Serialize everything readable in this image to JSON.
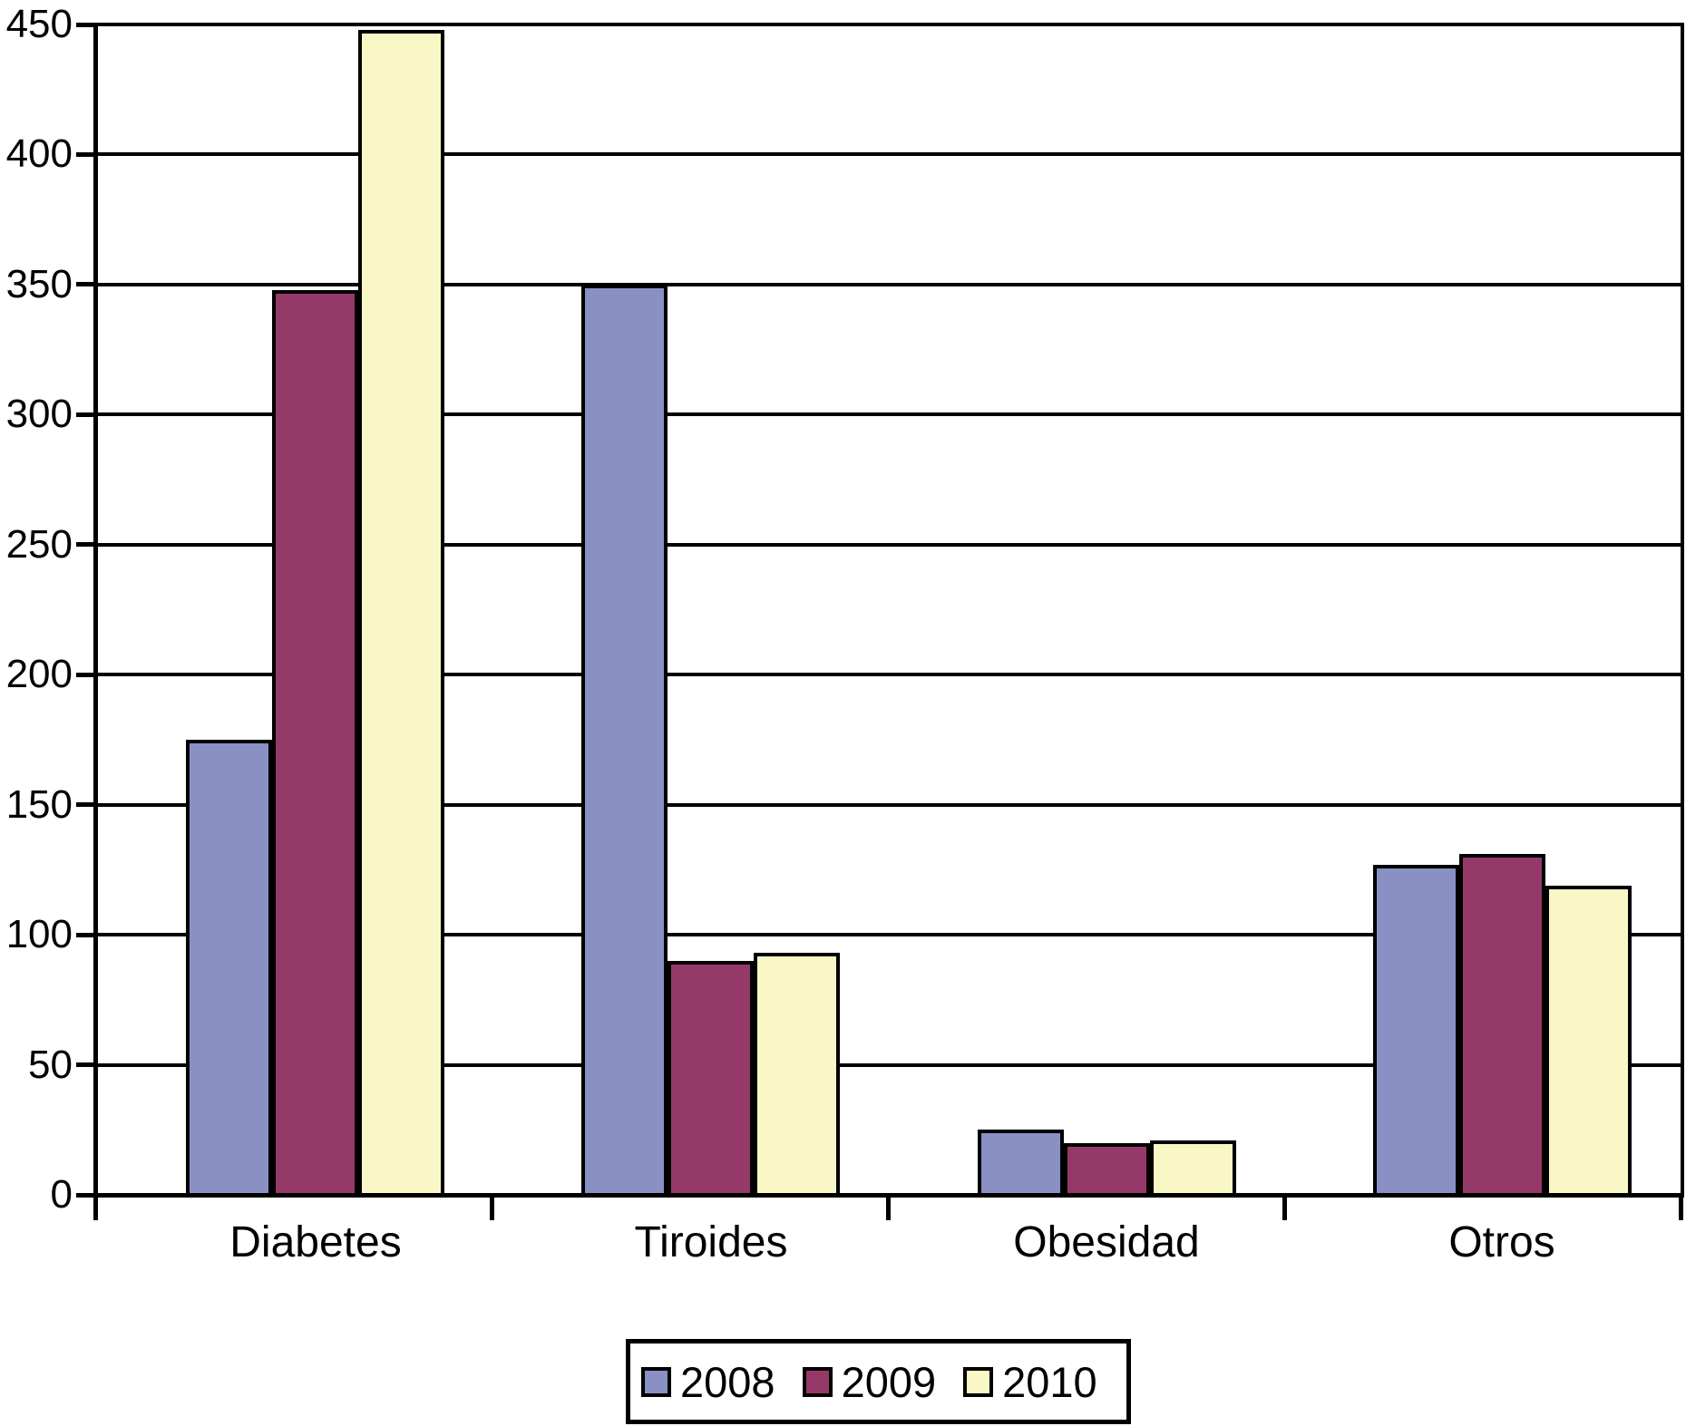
{
  "chart_data": {
    "type": "bar",
    "title": "",
    "xlabel": "",
    "ylabel": "",
    "categories": [
      "Diabetes",
      "Tiroides",
      "Obesidad",
      "Otros"
    ],
    "series": [
      {
        "name": "2008",
        "color": "#8A90C4",
        "values": [
          175,
          350,
          25,
          127
        ]
      },
      {
        "name": "2009",
        "color": "#953A68",
        "values": [
          348,
          90,
          20,
          131
        ]
      },
      {
        "name": "2010",
        "color": "#FAF7C6",
        "values": [
          448,
          93,
          21,
          119
        ]
      }
    ],
    "ylim": [
      0,
      450
    ],
    "y_ticks": [
      0,
      50,
      100,
      150,
      200,
      250,
      300,
      350,
      400,
      450
    ],
    "grid": true,
    "legend_position": "bottom",
    "background_color": "#FFFFFF",
    "line_color": "#000000"
  }
}
